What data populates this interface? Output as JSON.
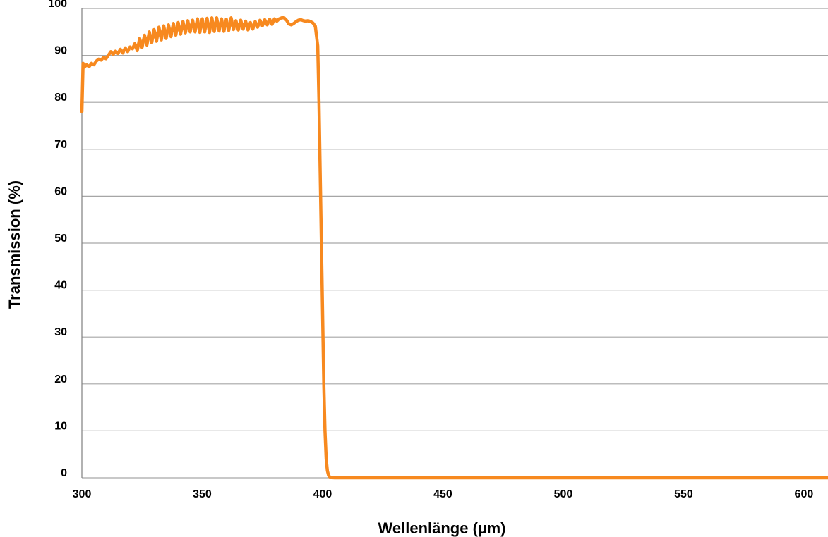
{
  "chart_data": {
    "type": "line",
    "title": "",
    "xlabel": "Wellenlänge (µm)",
    "ylabel": "Transmission (%)",
    "xlim": [
      300,
      610
    ],
    "ylim": [
      0,
      100
    ],
    "x_ticks": [
      "300",
      "350",
      "400",
      "450",
      "500",
      "550",
      "600"
    ],
    "y_ticks": [
      "0",
      "10",
      "20",
      "30",
      "40",
      "50",
      "60",
      "70",
      "80",
      "90",
      "100"
    ],
    "grid": "horizontal",
    "legend": "none",
    "series": [
      {
        "color": "#F7891F",
        "x": [
          300,
          300.5,
          301,
          302,
          303,
          304,
          305,
          306,
          307,
          308,
          309,
          310,
          311,
          312,
          313,
          314,
          315,
          316,
          317,
          318,
          319,
          320,
          321,
          322,
          323,
          324,
          325,
          326,
          327,
          328,
          329,
          330,
          331,
          332,
          333,
          334,
          335,
          336,
          337,
          338,
          339,
          340,
          341,
          342,
          343,
          344,
          345,
          346,
          347,
          348,
          349,
          350,
          351,
          352,
          353,
          354,
          355,
          356,
          357,
          358,
          359,
          360,
          361,
          362,
          363,
          364,
          365,
          366,
          367,
          368,
          369,
          370,
          371,
          372,
          373,
          374,
          375,
          376,
          377,
          378,
          379,
          380,
          381,
          382,
          383,
          384,
          385,
          386,
          387,
          388,
          389,
          390,
          391,
          392,
          393,
          394,
          395,
          396,
          397,
          398,
          398.5,
          399,
          399.5,
          400,
          400.5,
          401,
          401.5,
          402,
          402.5,
          403,
          403.5,
          404,
          405,
          406,
          410,
          450,
          500,
          550,
          600,
          610
        ],
        "y": [
          78,
          88.3,
          87.5,
          88,
          87.6,
          88.3,
          88,
          88.8,
          89.2,
          89,
          89.6,
          89.3,
          90,
          90.8,
          90.2,
          90.9,
          90.4,
          91.3,
          90.5,
          91.6,
          90.8,
          91.8,
          91.4,
          92.5,
          91,
          93.6,
          91.7,
          94.3,
          92.2,
          95,
          92.7,
          95.5,
          93,
          96,
          93.3,
          96.3,
          93.6,
          96.5,
          94,
          96.8,
          94.3,
          97,
          94.5,
          97.2,
          94.8,
          97.4,
          95,
          97.5,
          95,
          97.8,
          94.9,
          97.8,
          95,
          97.9,
          94.9,
          98,
          95.1,
          98,
          95.2,
          97.8,
          95.1,
          97.7,
          95.3,
          98,
          95.5,
          97.4,
          95.4,
          97.5,
          95.6,
          97.3,
          95.4,
          97,
          95.6,
          97.2,
          96,
          97.5,
          96.3,
          97.6,
          96.5,
          97.7,
          96.6,
          97.8,
          97.3,
          97.8,
          98,
          98,
          97.5,
          96.7,
          96.5,
          96.8,
          97.2,
          97.5,
          97.6,
          97.4,
          97.3,
          97.4,
          97.2,
          96.9,
          96.2,
          92,
          80,
          65,
          50,
          35,
          20,
          10,
          4,
          1.5,
          0.5,
          0.2,
          0.1,
          0.05,
          0,
          0,
          0,
          0,
          0,
          0,
          0,
          0
        ]
      }
    ]
  }
}
